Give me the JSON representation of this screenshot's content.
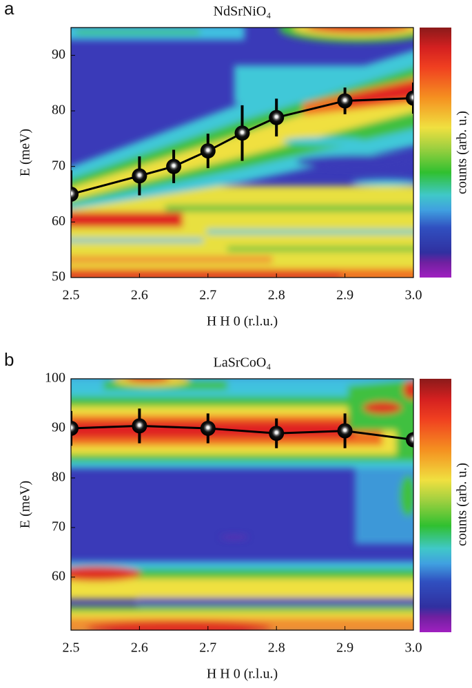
{
  "chart_data": [
    {
      "type": "line",
      "panel_label": "a",
      "title": "NdSrNiO₄",
      "xlabel": "H H 0 (r.l.u.)",
      "ylabel": "E (meV)",
      "colorbar_label": "counts (arb. u.)",
      "x": [
        2.5,
        2.6,
        2.65,
        2.7,
        2.75,
        2.8,
        2.9,
        3.0
      ],
      "values": [
        65,
        68.3,
        70,
        72.8,
        76,
        78.8,
        81.8,
        82.3
      ],
      "errors": [
        4.3,
        3.5,
        3,
        3.1,
        5,
        3.4,
        2.4,
        2.8
      ],
      "color": "#000000",
      "xlim": [
        2.5,
        3.0
      ],
      "ylim": [
        50,
        95
      ],
      "xticks": [
        2.5,
        2.6,
        2.7,
        2.8,
        2.9,
        {
          "value": 3.0,
          "label": "3.0"
        }
      ],
      "yticks": [
        50,
        60,
        70,
        80,
        90
      ]
    },
    {
      "type": "line",
      "panel_label": "b",
      "title": "LaSrCoO₄",
      "xlabel": "H H 0 (r.l.u.)",
      "ylabel": "E (meV)",
      "colorbar_label": "counts (arb. u.)",
      "x": [
        2.5,
        2.6,
        2.7,
        2.8,
        2.9,
        3.0
      ],
      "values": [
        90,
        90.5,
        90,
        89,
        89.5,
        87.7
      ],
      "errors": [
        3.5,
        3.5,
        3,
        3,
        3.5,
        1.5
      ],
      "color": "#000000",
      "xlim": [
        2.5,
        3.0
      ],
      "ylim": [
        49.3,
        100
      ],
      "xticks": [
        2.5,
        2.6,
        2.7,
        2.8,
        2.9,
        {
          "value": 3.0,
          "label": "3.0"
        }
      ],
      "yticks": [
        60,
        70,
        80,
        90,
        100
      ]
    }
  ]
}
